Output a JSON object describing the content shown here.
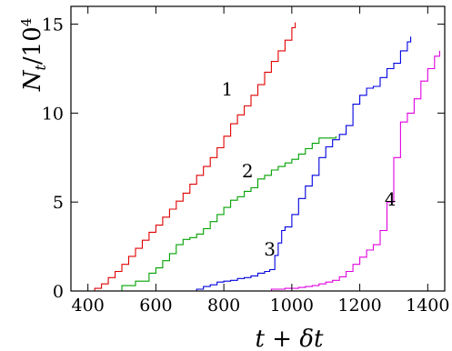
{
  "chart_data": {
    "type": "line",
    "title": "",
    "xlabel_parts": [
      "t",
      " + ",
      "δt"
    ],
    "ylabel_parts": [
      "N",
      "t",
      "/10",
      "4"
    ],
    "xlim": [
      350,
      1450
    ],
    "ylim": [
      0,
      16
    ],
    "xticks": [
      400,
      600,
      800,
      1000,
      1200,
      1400
    ],
    "yticks": [
      0,
      5,
      10,
      15
    ],
    "grid": false,
    "legend": "none",
    "series": [
      {
        "name": "1",
        "color": "#e00000",
        "label_at": [
          810,
          11
        ],
        "x": [
          400,
          420,
          440,
          460,
          480,
          500,
          520,
          540,
          560,
          580,
          600,
          620,
          640,
          660,
          680,
          700,
          720,
          740,
          760,
          780,
          800,
          820,
          840,
          860,
          880,
          900,
          920,
          940,
          960,
          980,
          1000,
          1010
        ],
        "y": [
          0,
          0.15,
          0.4,
          0.75,
          1.1,
          1.5,
          1.95,
          2.4,
          2.85,
          3.3,
          3.7,
          4.15,
          4.6,
          5.05,
          5.5,
          6.0,
          6.5,
          7.0,
          7.5,
          8.05,
          8.7,
          9.4,
          9.9,
          10.4,
          11.0,
          11.6,
          12.3,
          12.9,
          13.5,
          14.1,
          14.8,
          15.1
        ]
      },
      {
        "name": "2",
        "color": "#00a000",
        "label_at": [
          870,
          6.4
        ],
        "x": [
          490,
          500,
          540,
          580,
          600,
          620,
          640,
          660,
          680,
          700,
          720,
          740,
          760,
          780,
          800,
          820,
          840,
          860,
          880,
          900,
          920,
          940,
          960,
          980,
          1000,
          1020,
          1040,
          1060,
          1080,
          1100,
          1130
        ],
        "y": [
          0,
          0.3,
          0.55,
          1.0,
          1.3,
          1.7,
          2.1,
          2.6,
          2.9,
          3.0,
          3.2,
          3.5,
          3.9,
          4.3,
          4.7,
          5.1,
          5.3,
          5.6,
          5.8,
          6.3,
          6.5,
          6.8,
          7.0,
          7.2,
          7.4,
          7.7,
          8.0,
          8.3,
          8.6,
          8.6,
          8.7
        ]
      },
      {
        "name": "3",
        "color": "#0000e0",
        "label_at": [
          935,
          2
        ],
        "x": [
          700,
          720,
          740,
          760,
          780,
          800,
          820,
          840,
          860,
          880,
          900,
          920,
          935,
          950,
          960,
          970,
          980,
          1000,
          1020,
          1040,
          1060,
          1080,
          1100,
          1120,
          1140,
          1160,
          1180,
          1200,
          1220,
          1240,
          1260,
          1280,
          1300,
          1320,
          1340,
          1350
        ],
        "y": [
          0,
          0.1,
          0.25,
          0.35,
          0.5,
          0.55,
          0.6,
          0.7,
          0.75,
          0.85,
          1.0,
          1.1,
          1.2,
          2.0,
          2.7,
          3.4,
          3.6,
          4.3,
          5.2,
          5.9,
          6.5,
          7.5,
          8.1,
          8.5,
          8.8,
          9.3,
          10.5,
          11.0,
          11.4,
          11.5,
          12.0,
          12.5,
          12.8,
          13.5,
          14.0,
          14.3
        ]
      },
      {
        "name": "4",
        "color": "#e000e0",
        "label_at": [
          1290,
          4.8
        ],
        "x": [
          900,
          940,
          980,
          1020,
          1040,
          1060,
          1080,
          1100,
          1120,
          1140,
          1160,
          1180,
          1200,
          1220,
          1240,
          1260,
          1280,
          1300,
          1320,
          1340,
          1360,
          1380,
          1400,
          1420,
          1435
        ],
        "y": [
          0,
          0.1,
          0.15,
          0.2,
          0.25,
          0.3,
          0.4,
          0.5,
          0.6,
          0.8,
          1.1,
          1.5,
          1.9,
          2.3,
          2.6,
          3.4,
          5.0,
          7.5,
          9.5,
          10.0,
          10.8,
          11.8,
          12.5,
          13.2,
          13.5
        ]
      }
    ]
  }
}
